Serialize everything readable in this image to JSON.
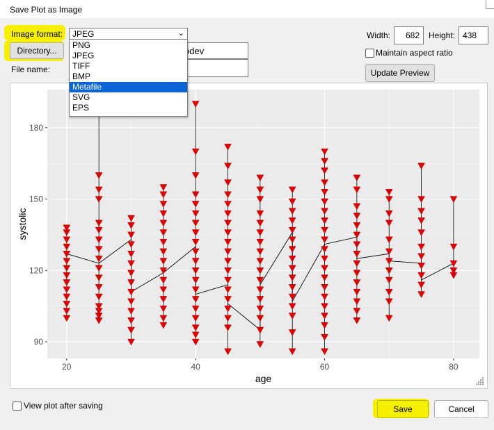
{
  "window": {
    "title": "Save Plot as Image"
  },
  "format": {
    "label": "Image format:",
    "selected": "JPEG",
    "options": [
      "PNG",
      "JPEG",
      "TIFF",
      "BMP",
      "Metafile",
      "SVG",
      "EPS"
    ],
    "highlighted": "Metafile"
  },
  "directory": {
    "button": "Directory...",
    "path_fragment": "ödev"
  },
  "filename": {
    "label": "File name:",
    "value": ""
  },
  "size": {
    "width_label": "Width:",
    "width": "682",
    "height_label": "Height:",
    "height": "438"
  },
  "aspect": {
    "label": "Maintain aspect ratio",
    "checked": false
  },
  "preview_button": "Update Preview",
  "view_after": {
    "label": "View plot after saving",
    "checked": false
  },
  "actions": {
    "save": "Save",
    "cancel": "Cancel"
  },
  "colors": {
    "highlight": "#f6f000",
    "marker": "#e00000",
    "panel": "#ebebeb",
    "selection": "#0a64d8"
  },
  "chart_data": {
    "type": "scatter",
    "title": "",
    "xlabel": "age",
    "ylabel": "systolic",
    "xlim": [
      17,
      84
    ],
    "ylim": [
      83,
      196
    ],
    "xticks": [
      20,
      40,
      60,
      80
    ],
    "yticks": [
      90,
      120,
      150,
      180
    ],
    "grid": true,
    "legend": "none",
    "marker": "triangle-down",
    "series": [
      {
        "points": [
          [
            20,
            100
          ],
          [
            20,
            103
          ],
          [
            20,
            106
          ],
          [
            20,
            109
          ],
          [
            20,
            112
          ],
          [
            20,
            115
          ],
          [
            20,
            118
          ],
          [
            20,
            121
          ],
          [
            20,
            124
          ],
          [
            20,
            127
          ],
          [
            20,
            130
          ],
          [
            20,
            133
          ],
          [
            20,
            136
          ],
          [
            20,
            138
          ],
          [
            25,
            99
          ],
          [
            25,
            101
          ],
          [
            25,
            103
          ],
          [
            25,
            105
          ],
          [
            25,
            109
          ],
          [
            25,
            113
          ],
          [
            25,
            117
          ],
          [
            25,
            121
          ],
          [
            25,
            125
          ],
          [
            25,
            129
          ],
          [
            25,
            133
          ],
          [
            25,
            137
          ],
          [
            25,
            140
          ],
          [
            25,
            150
          ],
          [
            25,
            154
          ],
          [
            25,
            160
          ],
          [
            25,
            192
          ],
          [
            30,
            90
          ],
          [
            30,
            95
          ],
          [
            30,
            99
          ],
          [
            30,
            103
          ],
          [
            30,
            107
          ],
          [
            30,
            111
          ],
          [
            30,
            115
          ],
          [
            30,
            119
          ],
          [
            30,
            123
          ],
          [
            30,
            127
          ],
          [
            30,
            131
          ],
          [
            30,
            135
          ],
          [
            30,
            139
          ],
          [
            30,
            142
          ],
          [
            35,
            97
          ],
          [
            35,
            100
          ],
          [
            35,
            104
          ],
          [
            35,
            108
          ],
          [
            35,
            112
          ],
          [
            35,
            116
          ],
          [
            35,
            120
          ],
          [
            35,
            124
          ],
          [
            35,
            128
          ],
          [
            35,
            132
          ],
          [
            35,
            136
          ],
          [
            35,
            140
          ],
          [
            35,
            144
          ],
          [
            35,
            148
          ],
          [
            35,
            152
          ],
          [
            35,
            155
          ],
          [
            40,
            90
          ],
          [
            40,
            93
          ],
          [
            40,
            96
          ],
          [
            40,
            100
          ],
          [
            40,
            104
          ],
          [
            40,
            108
          ],
          [
            40,
            112
          ],
          [
            40,
            116
          ],
          [
            40,
            120
          ],
          [
            40,
            124
          ],
          [
            40,
            128
          ],
          [
            40,
            132
          ],
          [
            40,
            136
          ],
          [
            40,
            140
          ],
          [
            40,
            144
          ],
          [
            40,
            148
          ],
          [
            40,
            152
          ],
          [
            40,
            160
          ],
          [
            40,
            170
          ],
          [
            40,
            190
          ],
          [
            45,
            86
          ],
          [
            45,
            96
          ],
          [
            45,
            100
          ],
          [
            45,
            104
          ],
          [
            45,
            108
          ],
          [
            45,
            112
          ],
          [
            45,
            116
          ],
          [
            45,
            120
          ],
          [
            45,
            124
          ],
          [
            45,
            128
          ],
          [
            45,
            132
          ],
          [
            45,
            136
          ],
          [
            45,
            140
          ],
          [
            45,
            144
          ],
          [
            45,
            148
          ],
          [
            45,
            152
          ],
          [
            45,
            157
          ],
          [
            45,
            164
          ],
          [
            45,
            172
          ],
          [
            50,
            89
          ],
          [
            50,
            95
          ],
          [
            50,
            100
          ],
          [
            50,
            104
          ],
          [
            50,
            108
          ],
          [
            50,
            112
          ],
          [
            50,
            116
          ],
          [
            50,
            120
          ],
          [
            50,
            124
          ],
          [
            50,
            128
          ],
          [
            50,
            132
          ],
          [
            50,
            136
          ],
          [
            50,
            140
          ],
          [
            50,
            144
          ],
          [
            50,
            150
          ],
          [
            50,
            154
          ],
          [
            50,
            159
          ],
          [
            55,
            86
          ],
          [
            55,
            94
          ],
          [
            55,
            101
          ],
          [
            55,
            105
          ],
          [
            55,
            109
          ],
          [
            55,
            113
          ],
          [
            55,
            117
          ],
          [
            55,
            121
          ],
          [
            55,
            125
          ],
          [
            55,
            129
          ],
          [
            55,
            133
          ],
          [
            55,
            137
          ],
          [
            55,
            141
          ],
          [
            55,
            145
          ],
          [
            55,
            149
          ],
          [
            55,
            154
          ],
          [
            60,
            86
          ],
          [
            60,
            92
          ],
          [
            60,
            97
          ],
          [
            60,
            101
          ],
          [
            60,
            105
          ],
          [
            60,
            109
          ],
          [
            60,
            113
          ],
          [
            60,
            117
          ],
          [
            60,
            121
          ],
          [
            60,
            125
          ],
          [
            60,
            129
          ],
          [
            60,
            133
          ],
          [
            60,
            137
          ],
          [
            60,
            141
          ],
          [
            60,
            145
          ],
          [
            60,
            149
          ],
          [
            60,
            153
          ],
          [
            60,
            157
          ],
          [
            60,
            162
          ],
          [
            60,
            166
          ],
          [
            60,
            170
          ],
          [
            65,
            99
          ],
          [
            65,
            103
          ],
          [
            65,
            107
          ],
          [
            65,
            111
          ],
          [
            65,
            115
          ],
          [
            65,
            119
          ],
          [
            65,
            123
          ],
          [
            65,
            127
          ],
          [
            65,
            131
          ],
          [
            65,
            135
          ],
          [
            65,
            139
          ],
          [
            65,
            143
          ],
          [
            65,
            147
          ],
          [
            65,
            154
          ],
          [
            65,
            159
          ],
          [
            70,
            100
          ],
          [
            70,
            107
          ],
          [
            70,
            111
          ],
          [
            70,
            116
          ],
          [
            70,
            120
          ],
          [
            70,
            124
          ],
          [
            70,
            128
          ],
          [
            70,
            133
          ],
          [
            70,
            140
          ],
          [
            70,
            144
          ],
          [
            70,
            150
          ],
          [
            70,
            153
          ],
          [
            75,
            110
          ],
          [
            75,
            114
          ],
          [
            75,
            118
          ],
          [
            75,
            122
          ],
          [
            75,
            126
          ],
          [
            75,
            130
          ],
          [
            75,
            136
          ],
          [
            75,
            141
          ],
          [
            75,
            145
          ],
          [
            75,
            150
          ],
          [
            75,
            164
          ],
          [
            80,
            118
          ],
          [
            80,
            120
          ],
          [
            80,
            123
          ],
          [
            80,
            130
          ],
          [
            80,
            150
          ]
        ]
      },
      {
        "name": "",
        "type": "line",
        "points": [
          [
            20,
            127
          ],
          [
            25,
            123
          ],
          [
            30,
            133
          ],
          [
            30,
            111
          ],
          [
            35,
            119
          ],
          [
            40,
            130
          ],
          [
            40,
            110
          ],
          [
            45,
            114
          ],
          [
            45,
            106
          ],
          [
            50,
            95
          ],
          [
            50,
            114
          ],
          [
            55,
            136
          ],
          [
            55,
            107
          ],
          [
            60,
            131
          ],
          [
            65,
            134
          ],
          [
            65,
            125
          ],
          [
            70,
            127
          ],
          [
            70,
            124
          ],
          [
            75,
            123
          ],
          [
            75,
            116
          ],
          [
            80,
            123
          ]
        ]
      }
    ]
  }
}
